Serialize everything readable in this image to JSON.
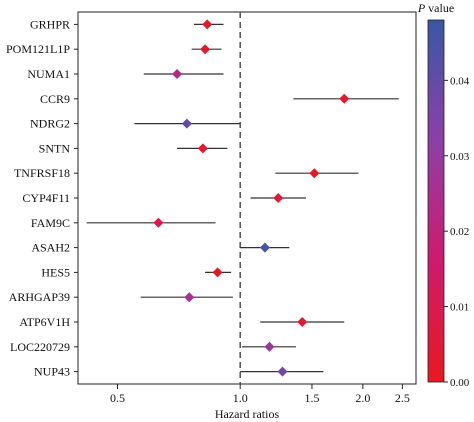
{
  "chart_data": {
    "type": "forest",
    "xlabel": "Hazard ratios",
    "x_scale": "log",
    "xlim": [
      0.4,
      2.7
    ],
    "reference_line": 1.0,
    "xticks": [
      0.5,
      1.0,
      1.5,
      2.0,
      2.5
    ],
    "xtick_labels": [
      "0.5",
      "1.0",
      "1.5",
      "2.0",
      "2.5"
    ],
    "colorbar": {
      "title": "P value",
      "range": [
        0.0,
        0.048
      ],
      "ticks": [
        0.0,
        0.01,
        0.02,
        0.03,
        0.04
      ],
      "tick_labels": [
        "0.00",
        "0.01",
        "0.02",
        "0.03",
        "0.04"
      ],
      "colors": [
        "#e8191e",
        "#cf1a6c",
        "#8d3fa8",
        "#3a57a6"
      ]
    },
    "genes": [
      {
        "label": "GRHPR",
        "hr": 0.83,
        "lower": 0.77,
        "upper": 0.91,
        "p": 0.002
      },
      {
        "label": "POM121L1P",
        "hr": 0.82,
        "lower": 0.76,
        "upper": 0.9,
        "p": 0.003
      },
      {
        "label": "NUMA1",
        "hr": 0.7,
        "lower": 0.58,
        "upper": 0.91,
        "p": 0.022
      },
      {
        "label": "CCR9",
        "hr": 1.8,
        "lower": 1.35,
        "upper": 2.45,
        "p": 0.002
      },
      {
        "label": "NDRG2",
        "hr": 0.74,
        "lower": 0.55,
        "upper": 1.0,
        "p": 0.04
      },
      {
        "label": "SNTN",
        "hr": 0.81,
        "lower": 0.7,
        "upper": 0.93,
        "p": 0.004
      },
      {
        "label": "TNFRSF18",
        "hr": 1.52,
        "lower": 1.22,
        "upper": 1.95,
        "p": 0.001
      },
      {
        "label": "CYP4F11",
        "hr": 1.24,
        "lower": 1.06,
        "upper": 1.45,
        "p": 0.006
      },
      {
        "label": "FAM9C",
        "hr": 0.63,
        "lower": 0.42,
        "upper": 0.87,
        "p": 0.01
      },
      {
        "label": "ASAH2",
        "hr": 1.15,
        "lower": 1.0,
        "upper": 1.32,
        "p": 0.046
      },
      {
        "label": "HES5",
        "hr": 0.88,
        "lower": 0.82,
        "upper": 0.95,
        "p": 0.001
      },
      {
        "label": "ARHGAP39",
        "hr": 0.75,
        "lower": 0.57,
        "upper": 0.96,
        "p": 0.025
      },
      {
        "label": "ATP6V1H",
        "hr": 1.42,
        "lower": 1.12,
        "upper": 1.8,
        "p": 0.005
      },
      {
        "label": "LOC220729",
        "hr": 1.18,
        "lower": 1.01,
        "upper": 1.37,
        "p": 0.028
      },
      {
        "label": "NUP43",
        "hr": 1.27,
        "lower": 1.0,
        "upper": 1.6,
        "p": 0.038
      }
    ]
  }
}
